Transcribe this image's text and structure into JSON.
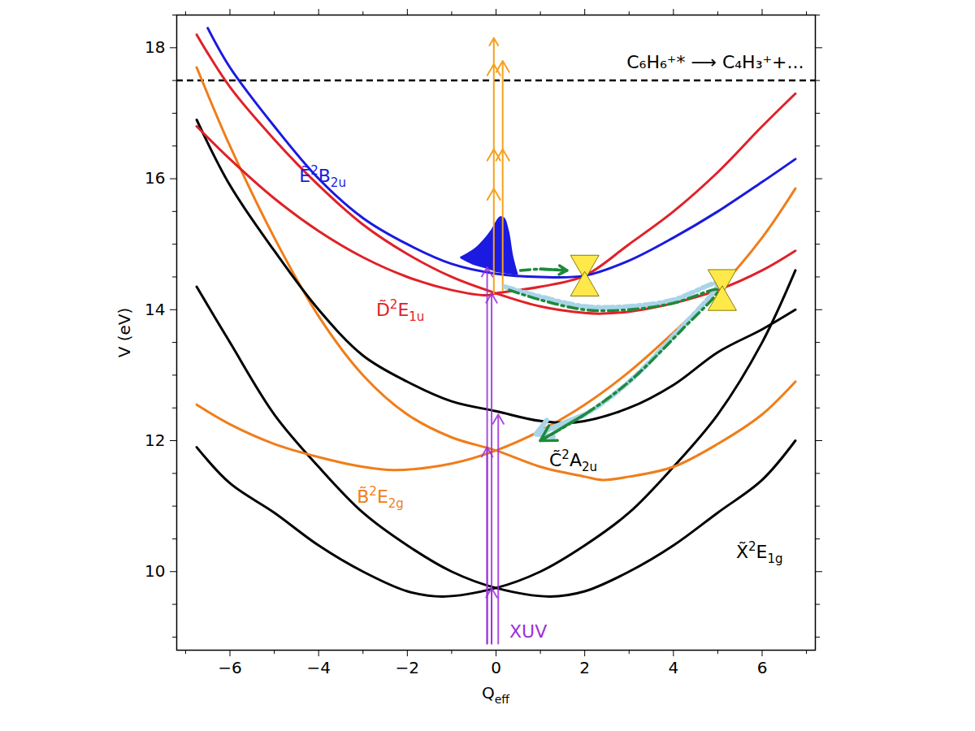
{
  "chart_data": {
    "type": "line",
    "x_label": {
      "text": "Q",
      "sub": "eff"
    },
    "y_label": "V (eV)",
    "xlim": [
      -7.2,
      7.2
    ],
    "ylim": [
      8.8,
      18.5
    ],
    "xticks": [
      -6,
      -4,
      -2,
      0,
      2,
      4,
      6
    ],
    "yticks": [
      10,
      12,
      14,
      16,
      18
    ],
    "xticks_minor": [
      -7,
      -5,
      -3,
      -1,
      1,
      3,
      5,
      7
    ],
    "yticks_minor": [
      9,
      9.5,
      10.5,
      11,
      11.5,
      12.5,
      13,
      13.5,
      14.5,
      15,
      15.5,
      16.5,
      17,
      17.5,
      18.5
    ],
    "states": [
      {
        "label": {
          "tilde": "X̃",
          "sup": "2",
          "term": "E",
          "sub": "1g"
        },
        "label_at": [
          5.95,
          10.2
        ],
        "color": "#000000",
        "curves": [
          {
            "x": [
              -6.75,
              -6,
              -5,
              -4,
              -3,
              -2,
              -1.2,
              0,
              1,
              2,
              3,
              4,
              5,
              6,
              6.75
            ],
            "values": [
              11.9,
              11.35,
              10.9,
              10.4,
              10.0,
              9.7,
              9.62,
              9.75,
              10.0,
              10.4,
              10.9,
              11.6,
              12.4,
              13.5,
              14.6
            ]
          },
          {
            "x": [
              -6.75,
              -6,
              -5,
              -4,
              -3,
              -2,
              -1,
              0,
              1.2,
              2,
              3,
              4,
              5,
              6,
              6.75
            ],
            "values": [
              14.35,
              13.5,
              12.4,
              11.6,
              10.9,
              10.4,
              10.0,
              9.75,
              9.62,
              9.7,
              10.0,
              10.4,
              10.9,
              11.4,
              12.0
            ]
          }
        ]
      },
      {
        "label": {
          "tilde": "B̃",
          "sup": "2",
          "term": "E",
          "sub": "2g"
        },
        "label_at": [
          -2.6,
          11.05
        ],
        "color": "#f07d1a",
        "curves": [
          {
            "x": [
              -6.75,
              -6,
              -5,
              -4,
              -3,
              -2.3,
              -1,
              0,
              1,
              2,
              3,
              4,
              5,
              6,
              6.75
            ],
            "values": [
              12.55,
              12.25,
              11.95,
              11.75,
              11.6,
              11.55,
              11.65,
              11.85,
              12.15,
              12.55,
              13.05,
              13.65,
              14.3,
              15.1,
              15.85
            ]
          },
          {
            "x": [
              -6.75,
              -6,
              -5,
              -4,
              -3,
              -2,
              -1,
              0,
              1,
              2,
              2.4,
              3,
              4,
              5,
              6,
              6.75
            ],
            "values": [
              17.7,
              16.5,
              15.1,
              13.9,
              13.0,
              12.4,
              12.05,
              11.85,
              11.6,
              11.45,
              11.4,
              11.45,
              11.6,
              11.95,
              12.4,
              12.9
            ]
          }
        ]
      },
      {
        "label": {
          "tilde": "C̃",
          "sup": "2",
          "term": "A",
          "sub": "2u"
        },
        "label_at": [
          1.75,
          11.6
        ],
        "color": "#000000",
        "curves": [
          {
            "x": [
              -6.75,
              -6,
              -5,
              -4,
              -3,
              -2,
              -1,
              0,
              1,
              1.8,
              3,
              4,
              5,
              6,
              6.75
            ],
            "values": [
              16.9,
              15.9,
              14.9,
              14.0,
              13.3,
              12.9,
              12.6,
              12.45,
              12.3,
              12.28,
              12.5,
              12.85,
              13.35,
              13.7,
              14.0
            ]
          }
        ]
      },
      {
        "label": {
          "tilde": "D̃",
          "sup": "2",
          "term": "E",
          "sub": "1u"
        },
        "label_at": [
          -2.15,
          13.9
        ],
        "color": "#e02128",
        "curves": [
          {
            "x": [
              -6.75,
              -6,
              -5,
              -4,
              -3,
              -2,
              -1,
              -0.2,
              0,
              1,
              2,
              3,
              4,
              5,
              6,
              6.75
            ],
            "values": [
              16.8,
              16.3,
              15.7,
              15.2,
              14.8,
              14.5,
              14.3,
              14.22,
              14.25,
              14.35,
              14.52,
              15.0,
              15.5,
              16.1,
              16.8,
              17.3
            ]
          },
          {
            "x": [
              -6.75,
              -6,
              -5,
              -4,
              -3,
              -2,
              -1,
              0,
              1,
              2,
              2.4,
              3,
              4,
              5,
              6,
              6.75
            ],
            "values": [
              18.2,
              17.4,
              16.6,
              15.9,
              15.3,
              14.85,
              14.5,
              14.25,
              14.05,
              13.95,
              13.94,
              13.97,
              14.1,
              14.3,
              14.6,
              14.9
            ]
          }
        ]
      },
      {
        "label": {
          "tilde": "Ẽ",
          "sup": "2",
          "term": "B",
          "sub": "2u"
        },
        "label_at": [
          -3.9,
          15.95
        ],
        "color": "#1a1ae0",
        "curves": [
          {
            "x": [
              -6.5,
              -6,
              -5,
              -4,
              -3,
              -2,
              -1,
              0,
              1,
              2,
              3,
              4,
              5,
              6,
              6.75
            ],
            "values": [
              18.3,
              17.7,
              16.8,
              16.0,
              15.4,
              15.0,
              14.7,
              14.55,
              14.5,
              14.52,
              14.75,
              15.1,
              15.5,
              15.95,
              16.3
            ]
          }
        ]
      }
    ],
    "dissociation": {
      "value": 17.5,
      "label": "C₆H₆⁺* ⟶ C₄H₃⁺+...",
      "line_style": "dashed",
      "color": "#000000"
    },
    "wave_packet": {
      "color": "#1a1ae0",
      "x": [
        -0.8,
        -0.5,
        -0.3,
        -0.1,
        0.0,
        0.1,
        0.2,
        0.3,
        0.4,
        0.5
      ],
      "y1": [
        14.78,
        14.68,
        14.64,
        14.6,
        14.57,
        14.56,
        14.55,
        14.54,
        14.53,
        14.52
      ],
      "y2": [
        14.8,
        14.92,
        15.05,
        15.22,
        15.34,
        15.42,
        15.4,
        15.2,
        14.8,
        14.55
      ]
    },
    "xuv": {
      "label": "XUV",
      "color": "#9b30d9",
      "arrows": [
        {
          "x": -0.1,
          "from": 8.9,
          "to": 9.75
        },
        {
          "x": -0.2,
          "from": 8.9,
          "to": 11.9
        },
        {
          "x": 0.05,
          "from": 8.9,
          "to": 12.4
        },
        {
          "x": -0.1,
          "from": 8.9,
          "to": 14.25
        },
        {
          "x": -0.2,
          "from": 8.9,
          "to": 14.65
        }
      ]
    },
    "probe_arrows": {
      "color": "#f5a21f",
      "arrows": [
        {
          "x": -0.05,
          "points": [
            14.25,
            15.85,
            16.45,
            17.75,
            18.15
          ]
        },
        {
          "x": 0.15,
          "points": [
            14.3,
            16.45,
            17.8
          ]
        }
      ]
    },
    "pathways": [
      {
        "color": "#a9d4e8",
        "line_style": "dashdot",
        "x": [
          0.2,
          1.0,
          2.0,
          3.0,
          4.0,
          5.0,
          4.0,
          3.0,
          2.0,
          0.9
        ],
        "values": [
          14.35,
          14.2,
          14.05,
          14.05,
          14.15,
          14.4,
          13.6,
          12.9,
          12.4,
          12.1
        ]
      },
      {
        "color": "#1d8a3c",
        "line_style": "dashdot",
        "x": [
          0.3,
          1.0,
          2.0,
          3.0,
          4.0,
          5.0,
          4.2,
          3.0,
          2.0,
          1.0
        ],
        "values": [
          14.3,
          14.15,
          14.0,
          14.0,
          14.1,
          14.3,
          13.7,
          12.9,
          12.4,
          12.0
        ]
      },
      {
        "color": "#1d8a3c",
        "line_style": "dashdot",
        "x": [
          0.55,
          1.0,
          1.6
        ],
        "values": [
          14.6,
          14.62,
          14.6
        ]
      }
    ],
    "conical_intersections": {
      "color": "#ffe94a",
      "points": [
        {
          "x": 2.0,
          "y": 14.52
        },
        {
          "x": 5.1,
          "y": 14.3
        }
      ]
    }
  }
}
